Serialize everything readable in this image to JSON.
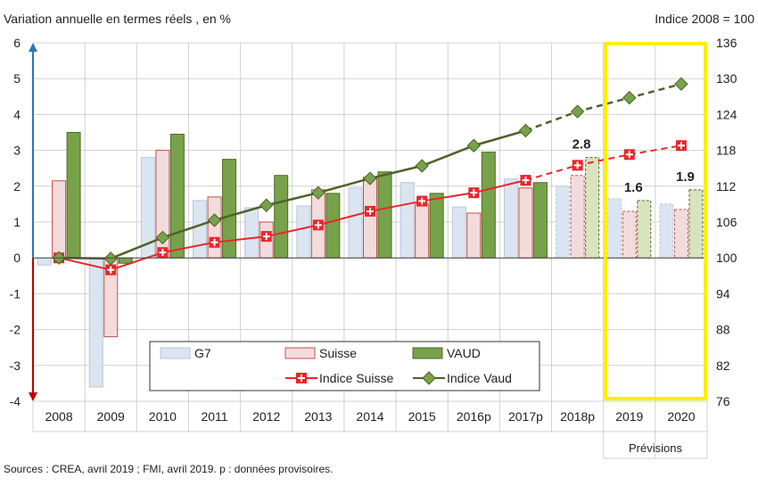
{
  "chart_data": {
    "type": "bar+line",
    "title_left": "Variation  annuelle en termes  réels ,  en %",
    "title_right": "Indice 2008 = 100",
    "categories": [
      "2008",
      "2009",
      "2010",
      "2011",
      "2012",
      "2013",
      "2014",
      "2015",
      "2016p",
      "2017p",
      "2018p",
      "2019",
      "2020"
    ],
    "forecast_label": "Prévisions",
    "forecast_categories": [
      "2019",
      "2020"
    ],
    "y_left": {
      "min": -4,
      "max": 6,
      "ticks": [
        -4,
        -3,
        -2,
        -1,
        0,
        1,
        2,
        3,
        4,
        5,
        6
      ]
    },
    "y_right": {
      "min": 76,
      "max": 136,
      "ticks": [
        76,
        82,
        88,
        94,
        100,
        106,
        112,
        118,
        124,
        130,
        136
      ]
    },
    "bar_series": [
      {
        "name": "G7",
        "color": "#dbe5f1",
        "stroke": "#b9c6d6",
        "values": [
          -0.2,
          -3.6,
          2.8,
          1.6,
          1.4,
          1.45,
          1.95,
          2.1,
          1.42,
          2.2,
          2.0,
          1.65,
          1.5
        ]
      },
      {
        "name": "Suisse",
        "color": "#f2dcdb",
        "stroke": "#c0504d",
        "values": [
          2.15,
          -2.2,
          3.0,
          1.7,
          1.0,
          1.9,
          2.25,
          1.5,
          1.25,
          1.95,
          2.3,
          1.3,
          1.35
        ]
      },
      {
        "name": "VAUD",
        "color": "#77a24a",
        "stroke": "#4f6b2a",
        "values": [
          3.5,
          -0.15,
          3.45,
          2.75,
          2.3,
          1.8,
          2.4,
          1.8,
          2.95,
          2.1,
          2.8,
          1.6,
          1.9
        ]
      }
    ],
    "provisional_from_index": 10,
    "line_series": [
      {
        "name": "Indice Suisse",
        "color": "#e8262a",
        "values": [
          100,
          98,
          100.9,
          102.6,
          103.6,
          105.5,
          107.8,
          109.5,
          110.9,
          113,
          115.5,
          117.3,
          118.8
        ],
        "dashed_from_index": 9
      },
      {
        "name": "Indice Vaud",
        "color": "#4f6228",
        "marker_color": "#77a24a",
        "values": [
          100,
          99.9,
          103.4,
          106.3,
          108.8,
          110.9,
          113.3,
          115.4,
          118.8,
          121.3,
          124.5,
          126.8,
          129.1
        ],
        "dashed_from_index": 9
      }
    ],
    "data_labels": [
      {
        "category": "2018p",
        "text": "2.8"
      },
      {
        "category": "2019",
        "text": "1.6"
      },
      {
        "category": "2020",
        "text": "1.9"
      }
    ],
    "source": "Sources : CREA, avril 2019 ; FMI, avril 2019. p : données provisoires."
  }
}
